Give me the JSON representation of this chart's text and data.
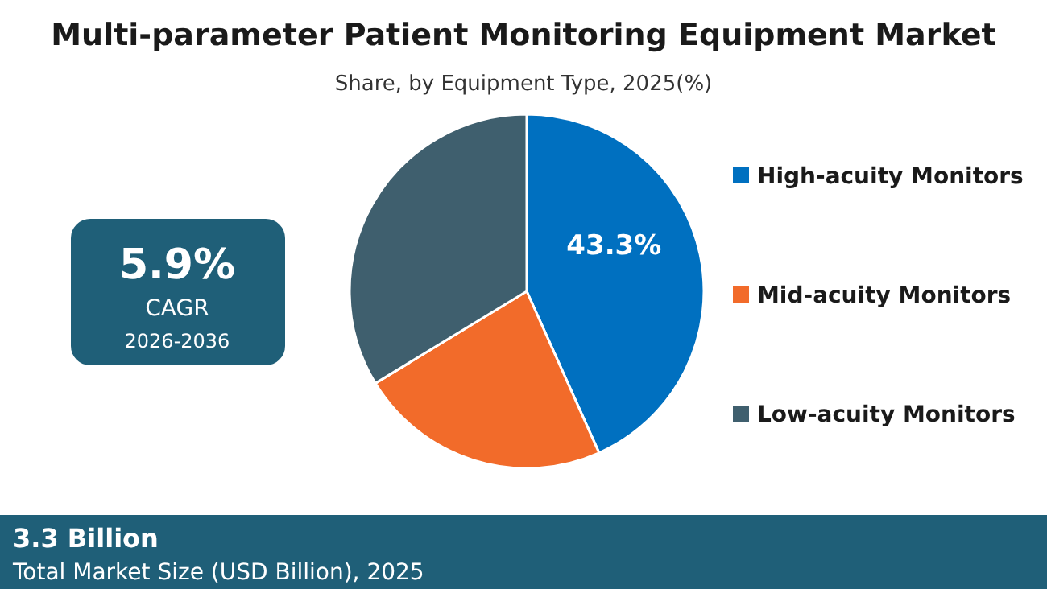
{
  "chart_data": {
    "type": "pie",
    "title": "Multi-parameter Patient Monitoring Equipment Market",
    "subtitle": "Share, by Equipment Type, 2025(%)",
    "categories": [
      "High-acuity Monitors",
      "Mid-acuity Monitors",
      "Low-acuity Monitors"
    ],
    "values": [
      43.3,
      23,
      33.7
    ],
    "colors": [
      "#0070c0",
      "#f26b2a",
      "#3f5f6e"
    ],
    "value_labels": [
      "43.3%",
      null,
      null
    ],
    "legend": "right",
    "annotations": [
      "5.9%",
      "CAGR",
      "2026-2036",
      "3.3 Billion",
      "Total Market Size (USD Billion), 2025"
    ]
  }
}
